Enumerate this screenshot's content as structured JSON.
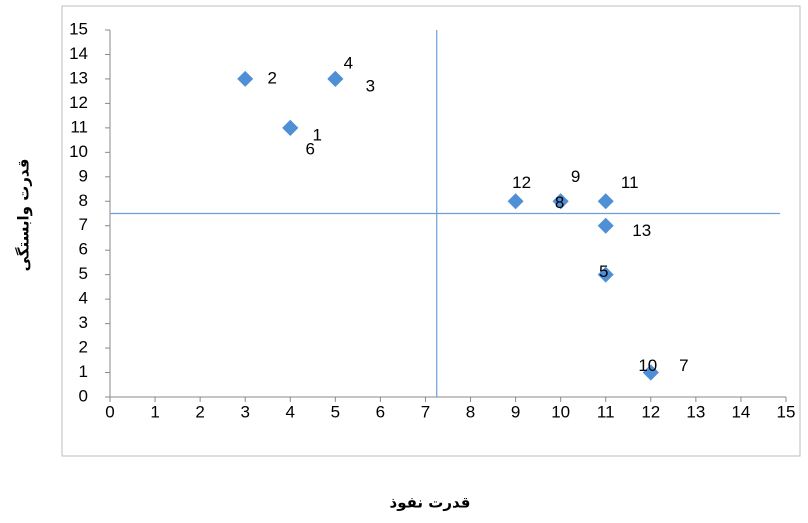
{
  "chart_data": {
    "type": "scatter",
    "x_label": "قدرت نفوذ",
    "y_label": "قدرت وابستگی",
    "series": [
      {
        "color": "#4f8fd6",
        "x": [
          4,
          3,
          5,
          5,
          11,
          4,
          12,
          10,
          10,
          12,
          11,
          9,
          11
        ],
        "values": [
          11,
          13,
          13,
          13,
          5,
          11,
          1,
          8,
          8,
          1,
          8,
          8,
          7
        ],
        "point_labels": [
          "1",
          "2",
          "3",
          "4",
          "5",
          "6",
          "7",
          "8",
          "9",
          "10",
          "11",
          "12",
          "13"
        ]
      }
    ],
    "xlim": [
      0,
      15
    ],
    "xticks": [
      0,
      1,
      2,
      3,
      4,
      5,
      6,
      7,
      8,
      9,
      10,
      11,
      12,
      13,
      14,
      15
    ],
    "ylim": [
      0,
      15
    ],
    "yticks": [
      0,
      1,
      2,
      3,
      4,
      5,
      6,
      7,
      8,
      9,
      10,
      11,
      12,
      13,
      14,
      15
    ],
    "vline": 7.25,
    "hline": 7.5,
    "line_color": "#6a9fd8"
  }
}
